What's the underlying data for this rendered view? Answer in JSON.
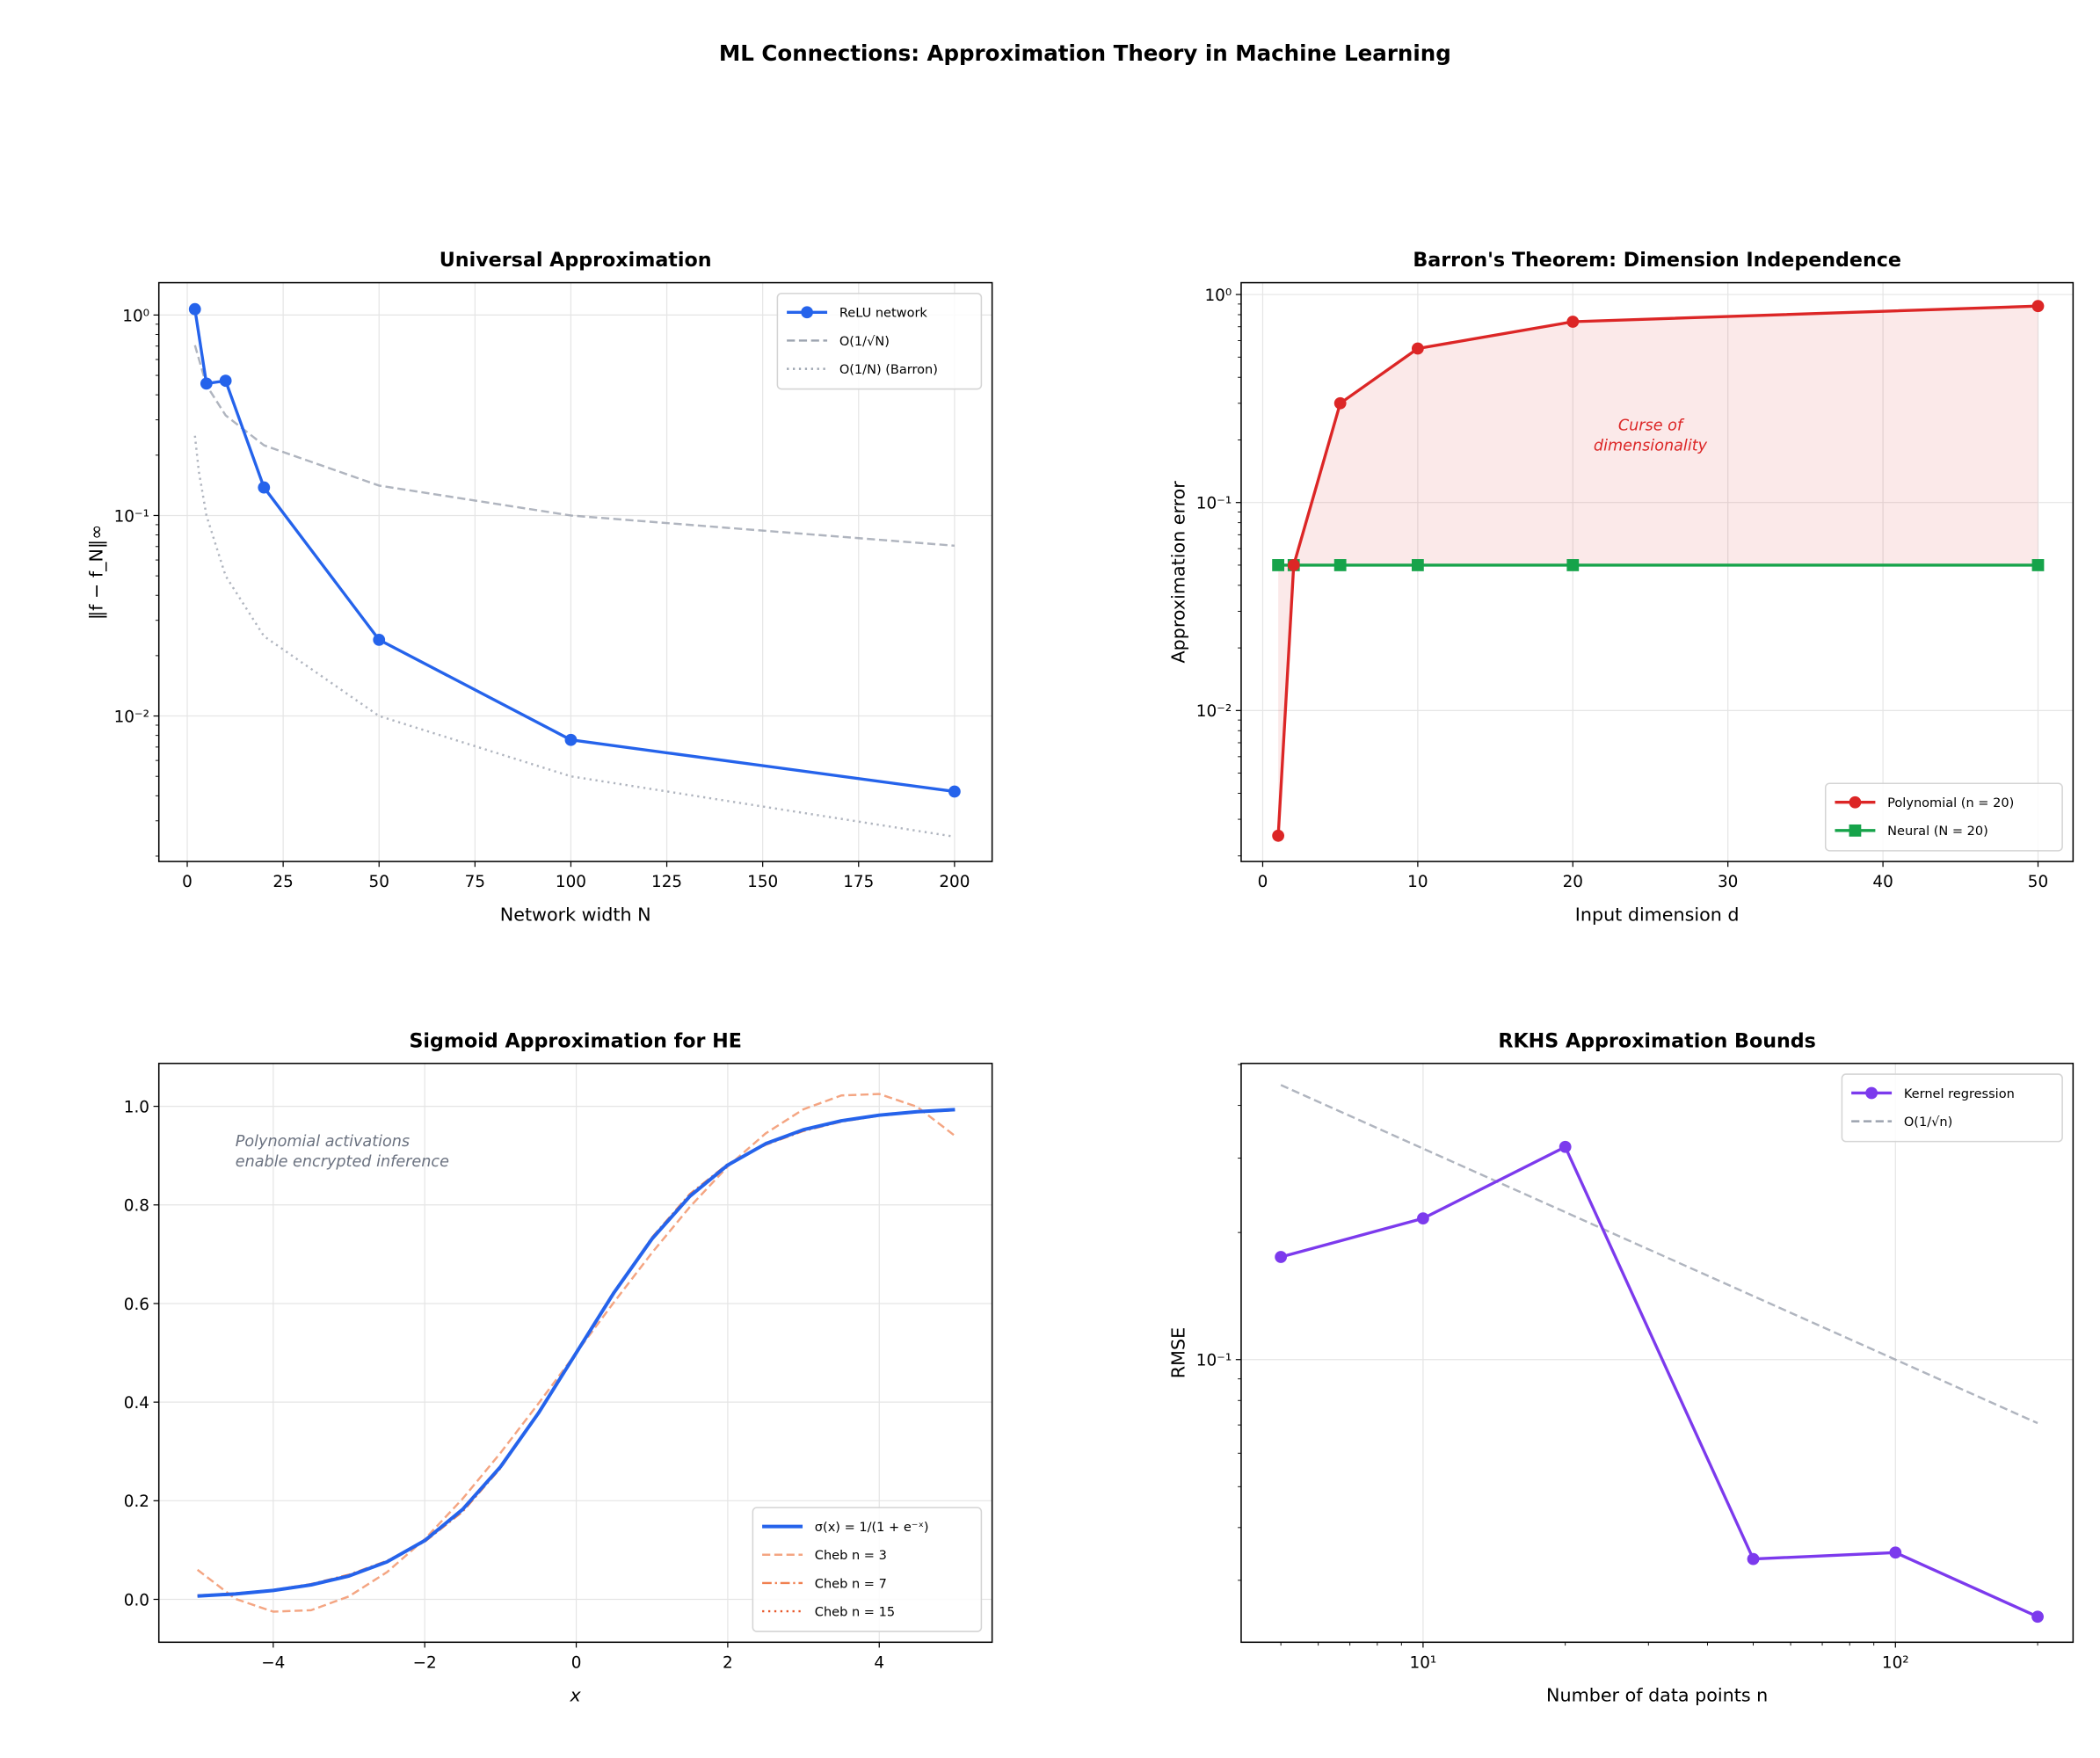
{
  "figure_title": "ML Connections: Approximation Theory in Machine Learning",
  "chart_data": [
    {
      "type": "line",
      "title": "Universal Approximation",
      "xlabel": "Network width N",
      "ylabel": "‖f − f_N‖∞",
      "xscale": "linear",
      "yscale": "log",
      "xlim": [
        -7.4,
        209.8
      ],
      "ylim": [
        0.00188,
        1.45
      ],
      "grid": true,
      "legend": "top-right",
      "xticks": [
        {
          "v": 0,
          "label": "0"
        },
        {
          "v": 25,
          "label": "25"
        },
        {
          "v": 50,
          "label": "50"
        },
        {
          "v": 75,
          "label": "75"
        },
        {
          "v": 100,
          "label": "100"
        },
        {
          "v": 125,
          "label": "125"
        },
        {
          "v": 150,
          "label": "150"
        },
        {
          "v": 175,
          "label": "175"
        },
        {
          "v": 200,
          "label": "200"
        }
      ],
      "yticks": [
        {
          "v": 1,
          "label": "10⁰"
        },
        {
          "v": 0.1,
          "label": "10⁻¹"
        },
        {
          "v": 0.01,
          "label": "10⁻²"
        }
      ],
      "series": [
        {
          "name": "ReLU network",
          "x": [
            2,
            5,
            10,
            20,
            50,
            100,
            200
          ],
          "y": [
            1.07,
            0.455,
            0.47,
            0.138,
            0.024,
            0.0076,
            0.0042
          ],
          "color": "#2563eb",
          "style": "solid",
          "marker": "circle",
          "width": 2.2
        },
        {
          "name": "O(1/√N)",
          "x": [
            2,
            5,
            10,
            20,
            50,
            100,
            200
          ],
          "y": [
            0.707,
            0.447,
            0.316,
            0.224,
            0.141,
            0.1,
            0.0707
          ],
          "color": "#9ca3af",
          "style": "dashed",
          "marker": "none",
          "width": 1.6
        },
        {
          "name": "O(1/N) (Barron)",
          "x": [
            2,
            3,
            5,
            10,
            20,
            50,
            100,
            200
          ],
          "y": [
            0.25,
            0.167,
            0.1,
            0.05,
            0.025,
            0.01,
            0.005,
            0.0025
          ],
          "color": "#9ca3af",
          "style": "dotted",
          "marker": "none",
          "width": 1.6
        }
      ]
    },
    {
      "type": "line",
      "title": "Barron's Theorem: Dimension Independence",
      "xlabel": "Input dimension d",
      "ylabel": "Approximation error",
      "xscale": "linear",
      "yscale": "log",
      "xlim": [
        -1.39,
        52.26
      ],
      "ylim": [
        0.00188,
        1.14
      ],
      "grid": true,
      "legend": "lower-right",
      "xticks": [
        {
          "v": 0,
          "label": "0"
        },
        {
          "v": 10,
          "label": "10"
        },
        {
          "v": 20,
          "label": "20"
        },
        {
          "v": 30,
          "label": "30"
        },
        {
          "v": 40,
          "label": "40"
        },
        {
          "v": 50,
          "label": "50"
        }
      ],
      "yticks": [
        {
          "v": 1,
          "label": "10⁰"
        },
        {
          "v": 0.1,
          "label": "10⁻¹"
        },
        {
          "v": 0.01,
          "label": "10⁻²"
        }
      ],
      "fill_between": {
        "color": "#dc2626",
        "opacity": 0.1
      },
      "annotation": {
        "lines": [
          "Curse of",
          "dimensionality"
        ],
        "x": 25,
        "y": 0.2,
        "color": "#dc2626"
      },
      "series": [
        {
          "name": "Polynomial (n = 20)",
          "x": [
            1,
            2,
            5,
            10,
            20,
            50
          ],
          "y": [
            0.0025,
            0.05,
            0.3,
            0.55,
            0.74,
            0.88
          ],
          "color": "#dc2626",
          "style": "solid",
          "marker": "circle",
          "width": 2.2
        },
        {
          "name": "Neural (N = 20)",
          "x": [
            1,
            2,
            5,
            10,
            20,
            50
          ],
          "y": [
            0.05,
            0.05,
            0.05,
            0.05,
            0.05,
            0.05
          ],
          "color": "#16a34a",
          "style": "solid",
          "marker": "square",
          "width": 2.2
        }
      ]
    },
    {
      "type": "line",
      "title": "Sigmoid Approximation for HE",
      "xlabel": "x",
      "ylabel": "",
      "xscale": "linear",
      "yscale": "linear",
      "xlim": [
        -5.51,
        5.49
      ],
      "ylim": [
        -0.087,
        1.087
      ],
      "grid": true,
      "legend": "lower-right",
      "xticks": [
        {
          "v": -4,
          "label": "−4"
        },
        {
          "v": -2,
          "label": "−2"
        },
        {
          "v": 0,
          "label": "0"
        },
        {
          "v": 2,
          "label": "2"
        },
        {
          "v": 4,
          "label": "4"
        }
      ],
      "yticks": [
        {
          "v": 0,
          "label": "0.0"
        },
        {
          "v": 0.2,
          "label": "0.2"
        },
        {
          "v": 0.4,
          "label": "0.4"
        },
        {
          "v": 0.6,
          "label": "0.6"
        },
        {
          "v": 0.8,
          "label": "0.8"
        },
        {
          "v": 1.0,
          "label": "1.0"
        }
      ],
      "annotation": {
        "lines": [
          "Polynomial activations",
          "enable encrypted inference"
        ],
        "x": -4.5,
        "y": 0.9,
        "color": "#6b7280",
        "align": "start"
      },
      "x": [
        -5,
        -4.5,
        -4,
        -3.5,
        -3,
        -2.5,
        -2,
        -1.5,
        -1,
        -0.5,
        0,
        0.5,
        1,
        1.5,
        2,
        2.5,
        3,
        3.5,
        4,
        4.5,
        5
      ],
      "series": [
        {
          "name": "σ(x) = 1/(1 + e⁻ˣ)",
          "y": [
            0.0067,
            0.011,
            0.018,
            0.0293,
            0.0474,
            0.0759,
            0.1192,
            0.1824,
            0.2689,
            0.3775,
            0.5,
            0.6225,
            0.7311,
            0.8176,
            0.8808,
            0.9241,
            0.9526,
            0.9707,
            0.982,
            0.989,
            0.9933
          ],
          "color": "#2563eb",
          "style": "solid",
          "marker": "none",
          "width": 2.6
        },
        {
          "name": "Cheb n = 3",
          "y": [
            0.06,
            0.001,
            -0.025,
            -0.022,
            0.006,
            0.055,
            0.122,
            0.204,
            0.297,
            0.397,
            0.5,
            0.603,
            0.703,
            0.796,
            0.878,
            0.945,
            0.994,
            1.022,
            1.025,
            0.999,
            0.94
          ],
          "color": "#f4a582",
          "style": "dashed",
          "marker": "none",
          "width": 1.6
        },
        {
          "name": "Cheb n = 7",
          "y": [
            0.008,
            0.012,
            0.019,
            0.031,
            0.05,
            0.078,
            0.117,
            0.178,
            0.266,
            0.378,
            0.5,
            0.622,
            0.734,
            0.822,
            0.883,
            0.922,
            0.95,
            0.969,
            0.981,
            0.988,
            0.992
          ],
          "color": "#f08050",
          "style": "dashdot",
          "marker": "none",
          "width": 1.6
        },
        {
          "name": "Cheb n = 15",
          "y": [
            0.0067,
            0.011,
            0.018,
            0.0293,
            0.0474,
            0.0759,
            0.1192,
            0.1824,
            0.2689,
            0.3775,
            0.5,
            0.6225,
            0.7311,
            0.8176,
            0.8808,
            0.9241,
            0.9526,
            0.9707,
            0.982,
            0.989,
            0.9933
          ],
          "color": "#e8582a",
          "style": "dotted",
          "marker": "none",
          "width": 1.6
        }
      ]
    },
    {
      "type": "line",
      "title": "RKHS Approximation Bounds",
      "xlabel": "Number of data points n",
      "ylabel": "RMSE",
      "xscale": "log",
      "yscale": "log",
      "xlim": [
        4.12,
        237.7
      ],
      "ylim": [
        0.0214,
        0.503
      ],
      "grid": true,
      "legend": "top-right",
      "xticks": [
        {
          "v": 10,
          "label": "10¹"
        },
        {
          "v": 100,
          "label": "10²"
        }
      ],
      "yticks": [
        {
          "v": 0.1,
          "label": "10⁻¹"
        }
      ],
      "series": [
        {
          "name": "Kernel regression",
          "x": [
            5,
            10,
            20,
            50,
            100,
            200
          ],
          "y": [
            0.175,
            0.216,
            0.319,
            0.0337,
            0.0349,
            0.0246
          ],
          "color": "#7c3aed",
          "style": "solid",
          "marker": "circle",
          "width": 2.2
        },
        {
          "name": "O(1/√n)",
          "x": [
            5,
            200
          ],
          "y": [
            0.447,
            0.0707
          ],
          "color": "#9ca3af",
          "style": "dashed",
          "marker": "none",
          "width": 1.6
        }
      ]
    }
  ]
}
